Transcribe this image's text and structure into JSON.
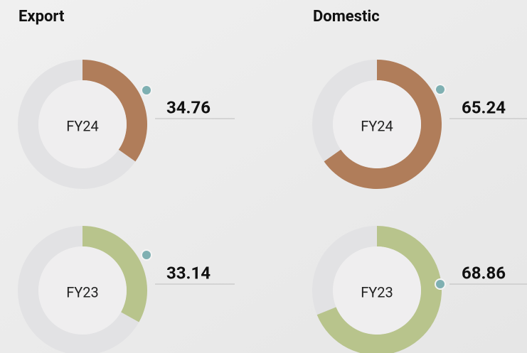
{
  "chart_data": [
    {
      "type": "donut",
      "title": "Export",
      "categories": [
        "FY24",
        "FY23"
      ],
      "values": [
        34.76,
        33.14
      ],
      "colors": [
        "#b07d5a",
        "#b8c48c"
      ],
      "ylim": [
        0,
        100
      ]
    },
    {
      "type": "donut",
      "title": "Domestic",
      "categories": [
        "FY24",
        "FY23"
      ],
      "values": [
        65.24,
        68.86
      ],
      "colors": [
        "#b07d5a",
        "#b8c48c"
      ],
      "ylim": [
        0,
        100
      ]
    }
  ]
}
